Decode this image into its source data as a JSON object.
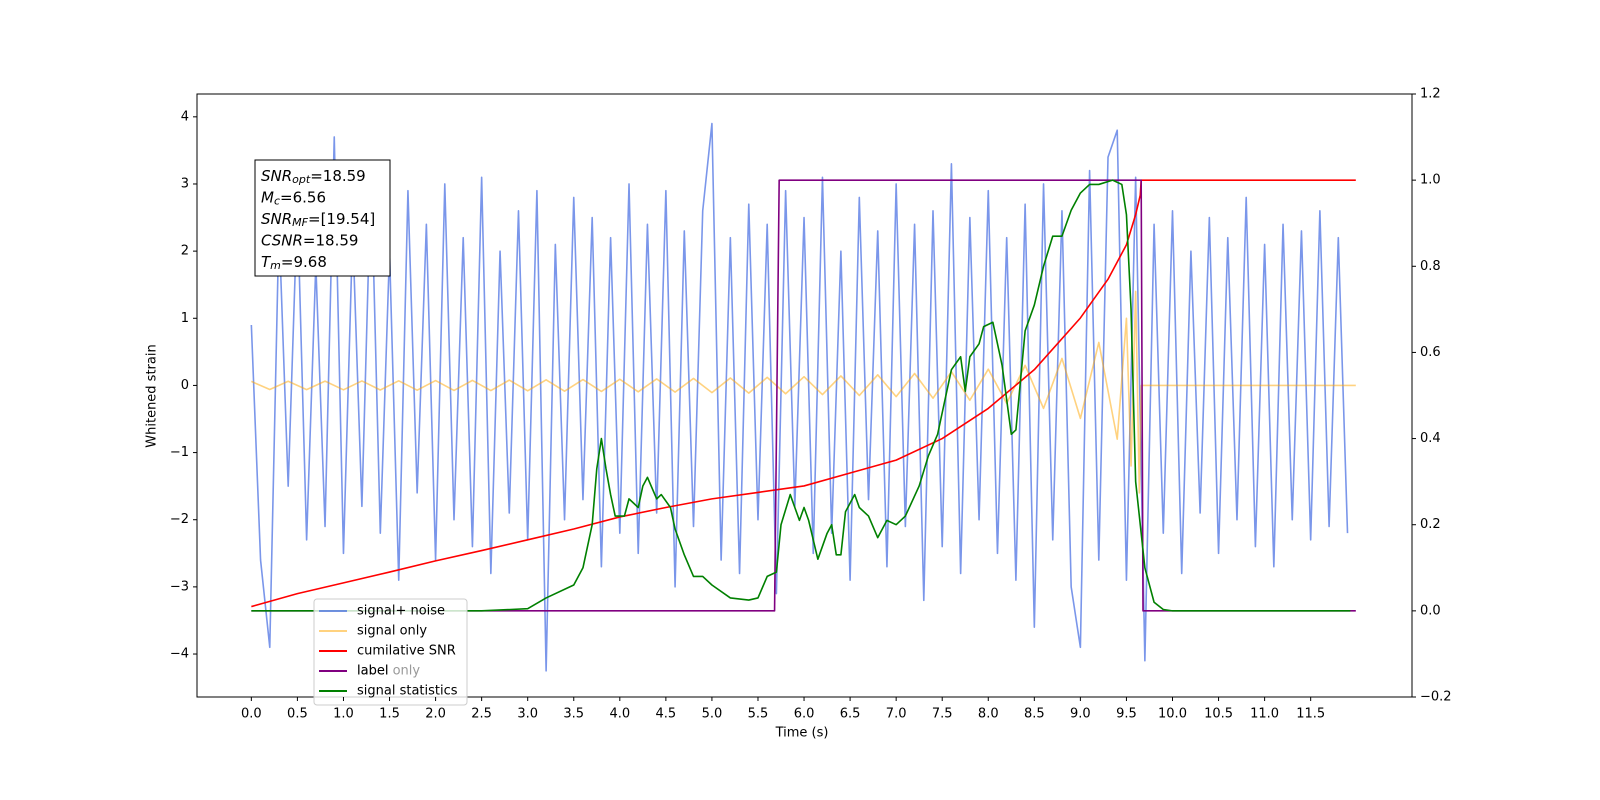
{
  "chart_data": {
    "type": "line",
    "xlabel": "Time (s)",
    "ylabel": "Whitened strain",
    "xlim": [
      -0.59,
      12.6
    ],
    "ylim": [
      -4.64,
      4.34
    ],
    "y2lim": [
      -0.2,
      1.2
    ],
    "xticks": [
      {
        "value": 0,
        "label": "0.0"
      },
      0.5,
      {
        "value": 1,
        "label": "1.0"
      },
      1.5,
      {
        "value": 2,
        "label": "2.0"
      },
      2.5,
      {
        "value": 3,
        "label": "3.0"
      },
      3.5,
      {
        "value": 4,
        "label": "4.0"
      },
      4.5,
      {
        "value": 5,
        "label": "5.0"
      },
      5.5,
      {
        "value": 6,
        "label": "6.0"
      },
      6.5,
      {
        "value": 7,
        "label": "7.0"
      },
      7.5,
      {
        "value": 8,
        "label": "8.0"
      },
      8.5,
      {
        "value": 9,
        "label": "9.0"
      },
      9.5,
      {
        "value": 10,
        "label": "10.0"
      },
      10.5,
      {
        "value": 11,
        "label": "11.0"
      },
      11.5
    ],
    "yticks": [
      {
        "value": -4,
        "label": "−4"
      },
      {
        "value": -3,
        "label": "−3"
      },
      {
        "value": -2,
        "label": "−2"
      },
      {
        "value": -1,
        "label": "−1"
      },
      0,
      1,
      2,
      3,
      4
    ],
    "y2ticks": [
      {
        "value": -0.2,
        "label": "−0.2"
      },
      {
        "value": 0,
        "label": "0.0"
      },
      0.2,
      0.4,
      0.6,
      0.8,
      {
        "value": 1,
        "label": "1.0"
      },
      1.2
    ],
    "legend": "lower left",
    "legend_overlay_text": "label only",
    "annotation": [
      {
        "main": "SNR",
        "sub": "opt",
        "rest": "=18.59"
      },
      {
        "main": "M",
        "sub": "c",
        "rest": "=6.56"
      },
      {
        "main": "SNR",
        "sub": "MF",
        "rest": "=[19.54]"
      },
      {
        "main": "CSNR",
        "sub": null,
        "rest": "=18.59"
      },
      {
        "main": "T",
        "sub": "m",
        "rest": "=9.68"
      }
    ],
    "series": [
      {
        "name": "signal+ noise",
        "color": "#4169e1",
        "opacity": 0.7,
        "axis": "y",
        "x": [
          0.0,
          0.1,
          0.2,
          0.3,
          0.4,
          0.5,
          0.6,
          0.7,
          0.8,
          0.9,
          1.0,
          1.1,
          1.2,
          1.3,
          1.4,
          1.5,
          1.6,
          1.7,
          1.8,
          1.9,
          2.0,
          2.1,
          2.2,
          2.3,
          2.4,
          2.5,
          2.6,
          2.7,
          2.8,
          2.9,
          3.0,
          3.1,
          3.2,
          3.3,
          3.4,
          3.5,
          3.6,
          3.7,
          3.8,
          3.9,
          4.0,
          4.1,
          4.2,
          4.3,
          4.4,
          4.5,
          4.6,
          4.7,
          4.8,
          4.9,
          5.0,
          5.1,
          5.2,
          5.3,
          5.4,
          5.5,
          5.6,
          5.7,
          5.8,
          5.9,
          6.0,
          6.1,
          6.2,
          6.3,
          6.4,
          6.5,
          6.6,
          6.7,
          6.8,
          6.9,
          7.0,
          7.1,
          7.2,
          7.3,
          7.4,
          7.5,
          7.6,
          7.7,
          7.8,
          7.9,
          8.0,
          8.1,
          8.2,
          8.3,
          8.4,
          8.5,
          8.6,
          8.7,
          8.8,
          8.9,
          9.0,
          9.1,
          9.2,
          9.3,
          9.4,
          9.5,
          9.6,
          9.7,
          9.8,
          9.9,
          10.0,
          10.1,
          10.2,
          10.3,
          10.4,
          10.5,
          10.6,
          10.7,
          10.8,
          10.9,
          11.0,
          11.1,
          11.2,
          11.3,
          11.4,
          11.5,
          11.6,
          11.7,
          11.8,
          11.9
        ],
        "values": [
          0.9,
          -2.6,
          -3.9,
          2.4,
          -1.5,
          2.7,
          -2.3,
          1.8,
          -2.1,
          3.7,
          -2.5,
          2.3,
          -1.8,
          3.2,
          -2.2,
          2.0,
          -2.9,
          2.9,
          -1.6,
          2.4,
          -2.6,
          3.0,
          -2.0,
          2.2,
          -2.4,
          3.1,
          -2.8,
          2.0,
          -1.9,
          2.6,
          -2.3,
          2.9,
          -4.25,
          2.1,
          -2.0,
          2.8,
          -1.7,
          2.5,
          -2.7,
          2.2,
          -2.2,
          3.0,
          -2.5,
          2.4,
          -1.9,
          2.9,
          -3.0,
          2.3,
          -2.1,
          2.6,
          3.9,
          -2.6,
          2.2,
          -2.8,
          2.7,
          -2.0,
          2.4,
          -3.1,
          2.9,
          -1.8,
          2.5,
          -2.5,
          3.1,
          -2.2,
          2.0,
          -2.9,
          2.8,
          -1.7,
          2.3,
          -2.7,
          3.0,
          -2.1,
          2.4,
          -3.2,
          2.6,
          -2.4,
          3.3,
          -2.8,
          2.5,
          -2.0,
          2.9,
          -2.5,
          2.2,
          -2.9,
          2.7,
          -3.6,
          3.0,
          -2.3,
          2.6,
          -3.0,
          -3.9,
          3.2,
          -2.6,
          3.4,
          3.8,
          -2.9,
          3.1,
          -4.1,
          2.4,
          -2.2,
          2.6,
          -2.8,
          2.0,
          -1.9,
          2.5,
          -2.5,
          2.2,
          -2.0,
          2.8,
          -2.4,
          2.1,
          -2.7,
          2.4,
          -2.0,
          2.3,
          -2.3,
          2.6,
          -2.1,
          2.2,
          -2.2
        ]
      },
      {
        "name": "signal only",
        "color": "#ffa500",
        "opacity": 0.5,
        "axis": "y",
        "x": [
          0.0,
          0.2,
          0.4,
          0.6,
          0.8,
          1.0,
          1.2,
          1.4,
          1.6,
          1.8,
          2.0,
          2.2,
          2.4,
          2.6,
          2.8,
          3.0,
          3.2,
          3.4,
          3.6,
          3.8,
          4.0,
          4.2,
          4.4,
          4.6,
          4.8,
          5.0,
          5.2,
          5.4,
          5.6,
          5.8,
          6.0,
          6.2,
          6.4,
          6.6,
          6.8,
          7.0,
          7.2,
          7.4,
          7.6,
          7.8,
          8.0,
          8.2,
          8.4,
          8.6,
          8.8,
          9.0,
          9.2,
          9.4,
          9.5,
          9.55,
          9.6,
          9.64,
          9.66,
          11.99
        ],
        "values": [
          0.06,
          -0.061,
          0.062,
          -0.063,
          0.064,
          -0.065,
          0.067,
          -0.068,
          0.069,
          -0.071,
          0.072,
          -0.074,
          0.075,
          -0.077,
          0.079,
          -0.081,
          0.083,
          -0.085,
          0.087,
          -0.089,
          0.092,
          -0.095,
          0.097,
          -0.1,
          0.104,
          -0.107,
          0.111,
          -0.115,
          0.12,
          -0.124,
          0.13,
          -0.136,
          0.142,
          -0.15,
          0.158,
          -0.167,
          0.178,
          -0.19,
          0.204,
          -0.221,
          0.242,
          -0.267,
          0.299,
          -0.342,
          0.402,
          -0.491,
          0.64,
          -0.8,
          1.0,
          -1.2,
          1.4,
          -1.6,
          0,
          0
        ]
      },
      {
        "name": "cumilative SNR",
        "color": "#ff0000",
        "axis": "y2",
        "x": [
          0,
          0.5,
          1,
          1.5,
          2,
          2.5,
          3,
          3.5,
          4,
          4.5,
          5,
          5.5,
          6,
          6.5,
          7,
          7.5,
          8,
          8.5,
          9,
          9.3,
          9.5,
          9.6,
          9.65,
          9.66,
          11.99
        ],
        "values": [
          0.01,
          0.04,
          0.065,
          0.09,
          0.116,
          0.14,
          0.165,
          0.19,
          0.218,
          0.24,
          0.26,
          0.275,
          0.29,
          0.32,
          0.35,
          0.4,
          0.47,
          0.56,
          0.68,
          0.77,
          0.85,
          0.92,
          0.965,
          1.0,
          1.0
        ]
      },
      {
        "name": "label",
        "color": "#800080",
        "axis": "y2",
        "x": [
          0,
          5.68,
          5.73,
          9.66,
          9.68,
          11.99
        ],
        "values": [
          0,
          0,
          1,
          1,
          0,
          0
        ]
      },
      {
        "name": "signal statistics",
        "color": "#008000",
        "axis": "y2",
        "x": [
          0,
          2.5,
          3.0,
          3.2,
          3.5,
          3.6,
          3.7,
          3.75,
          3.8,
          3.85,
          3.9,
          3.95,
          4.05,
          4.1,
          4.2,
          4.25,
          4.3,
          4.4,
          4.45,
          4.55,
          4.6,
          4.7,
          4.8,
          4.9,
          5.0,
          5.2,
          5.4,
          5.5,
          5.6,
          5.7,
          5.75,
          5.85,
          5.95,
          6.0,
          6.05,
          6.15,
          6.25,
          6.3,
          6.35,
          6.4,
          6.45,
          6.5,
          6.55,
          6.6,
          6.7,
          6.8,
          6.9,
          7.0,
          7.1,
          7.25,
          7.35,
          7.45,
          7.6,
          7.7,
          7.75,
          7.8,
          7.9,
          7.95,
          8.05,
          8.15,
          8.25,
          8.3,
          8.4,
          8.5,
          8.6,
          8.7,
          8.8,
          8.9,
          9.0,
          9.1,
          9.2,
          9.35,
          9.45,
          9.5,
          9.55,
          9.6,
          9.7,
          9.8,
          9.9,
          10.0,
          11.93
        ],
        "values": [
          0,
          0,
          0.005,
          0.03,
          0.06,
          0.1,
          0.2,
          0.33,
          0.4,
          0.33,
          0.27,
          0.22,
          0.22,
          0.26,
          0.24,
          0.29,
          0.31,
          0.26,
          0.27,
          0.24,
          0.19,
          0.13,
          0.08,
          0.08,
          0.06,
          0.03,
          0.025,
          0.03,
          0.08,
          0.09,
          0.2,
          0.27,
          0.21,
          0.24,
          0.21,
          0.12,
          0.18,
          0.2,
          0.13,
          0.13,
          0.23,
          0.25,
          0.27,
          0.24,
          0.22,
          0.17,
          0.21,
          0.2,
          0.22,
          0.29,
          0.36,
          0.41,
          0.56,
          0.59,
          0.51,
          0.59,
          0.62,
          0.66,
          0.67,
          0.57,
          0.41,
          0.42,
          0.65,
          0.71,
          0.8,
          0.87,
          0.87,
          0.93,
          0.97,
          0.99,
          0.99,
          1.0,
          0.99,
          0.92,
          0.7,
          0.3,
          0.1,
          0.02,
          0.003,
          0,
          0
        ]
      }
    ]
  }
}
